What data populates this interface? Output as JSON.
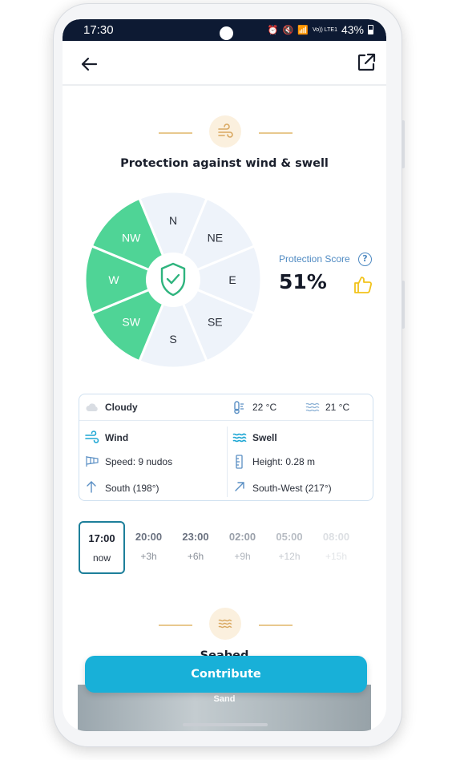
{
  "status_bar": {
    "time": "17:30",
    "signal_text": "Vo)) LTE1",
    "battery": "43%"
  },
  "app_bar": {
    "back": "arrow-left-icon",
    "share": "external-link-icon"
  },
  "protection": {
    "title": "Protection against wind & swell",
    "directions": [
      {
        "label": "N",
        "protected": false
      },
      {
        "label": "NE",
        "protected": false
      },
      {
        "label": "E",
        "protected": false
      },
      {
        "label": "SE",
        "protected": false
      },
      {
        "label": "S",
        "protected": false
      },
      {
        "label": "SW",
        "protected": true
      },
      {
        "label": "W",
        "protected": true
      },
      {
        "label": "NW",
        "protected": true
      }
    ],
    "score_label": "Protection Score",
    "help_glyph": "?",
    "score_value": "51%",
    "colors": {
      "protected": "#4fd496",
      "unprotected": "#eef3fa",
      "shield": "#2fb47e"
    }
  },
  "conditions": {
    "sky": "Cloudy",
    "air_temp": "22 °C",
    "water_temp": "21 °C",
    "wind": {
      "title": "Wind",
      "speed": "Speed: 9 nudos",
      "direction": "South (198°)"
    },
    "swell": {
      "title": "Swell",
      "height": "Height: 0.28 m",
      "direction": "South-West (217°)"
    }
  },
  "forecast": [
    {
      "time": "17:00",
      "offset": "now",
      "selected": true
    },
    {
      "time": "20:00",
      "offset": "+3h",
      "selected": false
    },
    {
      "time": "23:00",
      "offset": "+6h",
      "selected": false
    },
    {
      "time": "02:00",
      "offset": "+9h",
      "selected": false
    },
    {
      "time": "05:00",
      "offset": "+12h",
      "selected": false
    },
    {
      "time": "08:00",
      "offset": "+15h",
      "selected": false
    }
  ],
  "seabed": {
    "title": "Seabed",
    "type": "Sand"
  },
  "contribute_label": "Contribute"
}
